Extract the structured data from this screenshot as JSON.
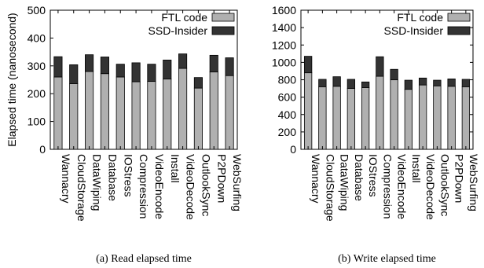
{
  "chart_data": [
    {
      "type": "bar",
      "stacked": true,
      "caption": "(a) Read elapsed time",
      "ylabel": "Elapsed time (nanosecond)",
      "xlabel": "",
      "ylim": [
        0,
        500
      ],
      "yticks": [
        0,
        100,
        200,
        300,
        400,
        500
      ],
      "legend_placement": "top-right",
      "categories": [
        "Wannacry",
        "CloudStorage",
        "DataWiping",
        "Database",
        "IOStress",
        "Compression",
        "VideoEncode",
        "Install",
        "VideoDecode",
        "OutlookSync",
        "P2PDown",
        "WebSurfing"
      ],
      "series": [
        {
          "name": "FTL code",
          "color": "#b0b0b0",
          "values": [
            260,
            236,
            280,
            272,
            260,
            243,
            244,
            253,
            291,
            220,
            278,
            265
          ]
        },
        {
          "name": "SSD-Insider",
          "color": "#333333",
          "values": [
            73,
            68,
            60,
            60,
            46,
            68,
            62,
            68,
            52,
            38,
            60,
            64
          ]
        }
      ]
    },
    {
      "type": "bar",
      "stacked": true,
      "caption": "(b) Write elapsed time",
      "ylabel": "",
      "xlabel": "",
      "ylim": [
        0,
        1600
      ],
      "yticks": [
        0,
        200,
        400,
        600,
        800,
        1000,
        1200,
        1400,
        1600
      ],
      "legend_placement": "top-right",
      "categories": [
        "Wannacry",
        "CloudStorage",
        "DataWiping",
        "Database",
        "IOStress",
        "Compression",
        "VideoEncode",
        "Install",
        "VideoDecode",
        "OutlookSync",
        "P2PDown",
        "WebSurfing"
      ],
      "series": [
        {
          "name": "FTL code",
          "color": "#b0b0b0",
          "values": [
            880,
            720,
            725,
            700,
            710,
            840,
            800,
            690,
            740,
            730,
            725,
            720
          ]
        },
        {
          "name": "SSD-Insider",
          "color": "#333333",
          "values": [
            190,
            85,
            110,
            105,
            65,
            225,
            120,
            105,
            80,
            65,
            85,
            85
          ]
        }
      ]
    }
  ]
}
